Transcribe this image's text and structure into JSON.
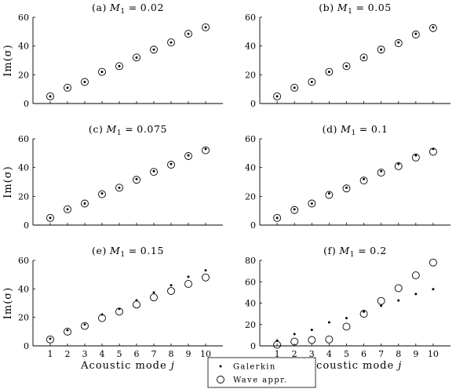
{
  "figure": {
    "ylabel": "Im(σ)",
    "xlabel": "Acoustic mode j",
    "legend": {
      "galerkin": "Galerkin",
      "wave": "Wave appr."
    }
  },
  "chart_data": [
    {
      "type": "scatter",
      "title": "(a) M1 = 0.02",
      "title_prefix": "(a)",
      "title_value": "0.02",
      "x": [
        1,
        2,
        3,
        4,
        5,
        6,
        7,
        8,
        9,
        10
      ],
      "xlim": [
        0,
        11
      ],
      "ylim": [
        0,
        60
      ],
      "yticks": [
        0,
        20,
        40,
        60
      ],
      "series": [
        {
          "name": "Galerkin",
          "values": [
            5,
            11,
            15,
            22,
            26,
            32,
            37.5,
            42.5,
            48.5,
            53
          ]
        },
        {
          "name": "Wave appr.",
          "values": [
            5,
            11,
            15,
            22,
            26,
            32,
            37.5,
            42.5,
            48.5,
            53
          ]
        }
      ]
    },
    {
      "type": "scatter",
      "title": "(b) M1 = 0.05",
      "title_prefix": "(b)",
      "title_value": "0.05",
      "x": [
        1,
        2,
        3,
        4,
        5,
        6,
        7,
        8,
        9,
        10
      ],
      "xlim": [
        0,
        11
      ],
      "ylim": [
        0,
        60
      ],
      "yticks": [
        0,
        20,
        40,
        60
      ],
      "series": [
        {
          "name": "Galerkin",
          "values": [
            5,
            11,
            15,
            22,
            26,
            32,
            37.5,
            42.5,
            48.5,
            53
          ]
        },
        {
          "name": "Wave appr.",
          "values": [
            5,
            11,
            15,
            22,
            26,
            32,
            37.5,
            42,
            48,
            52.5
          ]
        }
      ]
    },
    {
      "type": "scatter",
      "title": "(c) M1 = 0.075",
      "title_prefix": "(c)",
      "title_value": "0.075",
      "x": [
        1,
        2,
        3,
        4,
        5,
        6,
        7,
        8,
        9,
        10
      ],
      "xlim": [
        0,
        11
      ],
      "ylim": [
        0,
        60
      ],
      "yticks": [
        0,
        20,
        40,
        60
      ],
      "series": [
        {
          "name": "Galerkin",
          "values": [
            5,
            11,
            15,
            22,
            26,
            32,
            37.5,
            42.5,
            48.5,
            53
          ]
        },
        {
          "name": "Wave appr.",
          "values": [
            5,
            11,
            15,
            21.5,
            26,
            31.5,
            37,
            42,
            48,
            52
          ]
        }
      ]
    },
    {
      "type": "scatter",
      "title": "(d) M1 = 0.1",
      "title_prefix": "(d)",
      "title_value": "0.1",
      "x": [
        1,
        2,
        3,
        4,
        5,
        6,
        7,
        8,
        9,
        10
      ],
      "xlim": [
        0,
        11
      ],
      "ylim": [
        0,
        60
      ],
      "yticks": [
        0,
        20,
        40,
        60
      ],
      "series": [
        {
          "name": "Galerkin",
          "values": [
            5,
            11,
            15,
            22,
            26,
            32,
            37.5,
            42.5,
            48.5,
            53
          ]
        },
        {
          "name": "Wave appr.",
          "values": [
            5,
            10.5,
            15,
            21,
            25.5,
            31,
            36.5,
            41,
            47,
            51
          ]
        }
      ]
    },
    {
      "type": "scatter",
      "title": "(e) M1 = 0.15",
      "title_prefix": "(e)",
      "title_value": "0.15",
      "x": [
        1,
        2,
        3,
        4,
        5,
        6,
        7,
        8,
        9,
        10
      ],
      "xlim": [
        0,
        11
      ],
      "ylim": [
        0,
        60
      ],
      "yticks": [
        0,
        20,
        40,
        60
      ],
      "series": [
        {
          "name": "Galerkin",
          "values": [
            5,
            11,
            15,
            22,
            26,
            32,
            37.5,
            42.5,
            48.5,
            53
          ]
        },
        {
          "name": "Wave appr.",
          "values": [
            4.5,
            10,
            14,
            19.5,
            24,
            29,
            34,
            38.5,
            43.5,
            48
          ]
        }
      ]
    },
    {
      "type": "scatter",
      "title": "(f) M1 = 0.2",
      "title_prefix": "(f)",
      "title_value": "0.2",
      "x": [
        1,
        2,
        3,
        4,
        5,
        6,
        7,
        8,
        9,
        10
      ],
      "xlim": [
        0,
        11
      ],
      "ylim": [
        0,
        80
      ],
      "yticks": [
        0,
        20,
        40,
        60,
        80
      ],
      "series": [
        {
          "name": "Galerkin",
          "values": [
            5,
            11,
            15,
            22,
            26,
            32,
            37.5,
            42.5,
            48.5,
            53
          ]
        },
        {
          "name": "Wave appr.",
          "values": [
            1,
            4,
            5.5,
            6,
            18,
            30,
            42,
            54,
            66,
            78
          ]
        }
      ]
    }
  ]
}
